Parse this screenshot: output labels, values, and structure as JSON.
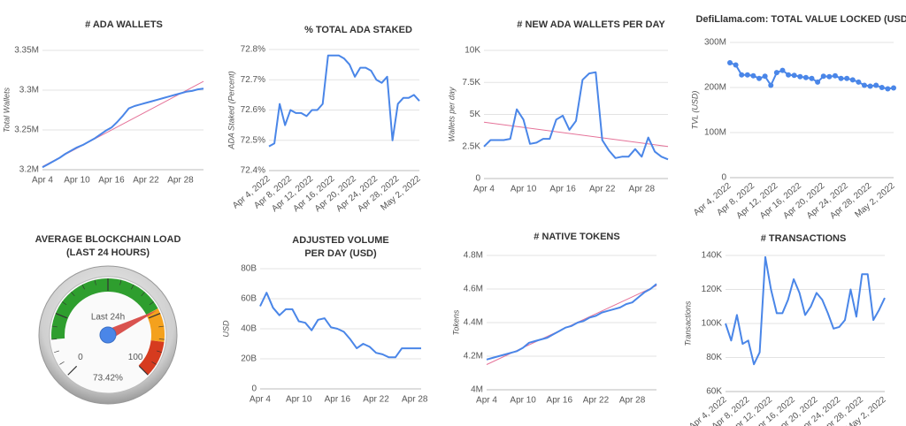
{
  "chart_data": [
    {
      "type": "line",
      "title": "# ADA WALLETS",
      "y_label": "Total Wallets",
      "categories": [
        "Apr 4",
        null,
        null,
        null,
        null,
        null,
        "Apr 10",
        null,
        null,
        null,
        null,
        null,
        "Apr 16",
        null,
        null,
        null,
        null,
        null,
        "Apr 22",
        null,
        null,
        null,
        null,
        null,
        "Apr 28",
        null,
        null,
        null,
        null
      ],
      "series": [
        {
          "color": "#4a86e8",
          "values": [
            3203000,
            3207000,
            3211000,
            3215000,
            3220000,
            3224000,
            3228000,
            3231000,
            3235000,
            3239000,
            3244000,
            3249000,
            3253000,
            3260000,
            3268000,
            3277000,
            3280000,
            3282000,
            3284000,
            3286000,
            3288000,
            3290000,
            3292000,
            3294000,
            3296000,
            3298000,
            3299000,
            3301000,
            3302000
          ]
        }
      ],
      "trend": {
        "color": "#e57399",
        "start": 3204000,
        "end": 3311000
      },
      "ylim": [
        3200000,
        3350000
      ],
      "yticks": [
        {
          "value": 3200000,
          "label": "3.2M"
        },
        {
          "value": 3250000,
          "label": "3.25M"
        },
        {
          "value": 3300000,
          "label": "3.3M"
        },
        {
          "value": 3350000,
          "label": "3.35M"
        }
      ],
      "grid": true
    },
    {
      "type": "line",
      "title": "% TOTAL ADA STAKED",
      "y_label": "ADA Staked (Percent)",
      "rotate_x_labels": true,
      "categories": [
        "Apr 4, 2022",
        null,
        null,
        null,
        "Apr 8, 2022",
        null,
        null,
        null,
        "Apr 12, 2022",
        null,
        null,
        null,
        "Apr 16, 2022",
        null,
        null,
        null,
        "Apr 20, 2022",
        null,
        null,
        null,
        "Apr 24, 2022",
        null,
        null,
        null,
        "Apr 28, 2022",
        null,
        null,
        null,
        "May 2, 2022"
      ],
      "series": [
        {
          "color": "#4a86e8",
          "values": [
            72.48,
            72.49,
            72.62,
            72.55,
            72.6,
            72.59,
            72.59,
            72.58,
            72.6,
            72.6,
            72.62,
            72.78,
            72.78,
            72.78,
            72.77,
            72.75,
            72.71,
            72.74,
            72.74,
            72.73,
            72.7,
            72.69,
            72.71,
            72.5,
            72.62,
            72.64,
            72.64,
            72.65,
            72.63
          ]
        }
      ],
      "ylim": [
        72.4,
        72.8
      ],
      "yticks": [
        {
          "value": 72.4,
          "label": "72.4%"
        },
        {
          "value": 72.5,
          "label": "72.5%"
        },
        {
          "value": 72.6,
          "label": "72.6%"
        },
        {
          "value": 72.7,
          "label": "72.7%"
        },
        {
          "value": 72.8,
          "label": "72.8%"
        }
      ],
      "grid": true
    },
    {
      "type": "line",
      "title": "# NEW ADA WALLETS PER DAY",
      "y_label": "Wallets per day",
      "categories": [
        "Apr 4",
        null,
        null,
        null,
        null,
        null,
        "Apr 10",
        null,
        null,
        null,
        null,
        null,
        "Apr 16",
        null,
        null,
        null,
        null,
        null,
        "Apr 22",
        null,
        null,
        null,
        null,
        null,
        "Apr 28",
        null,
        null,
        null,
        null
      ],
      "series": [
        {
          "color": "#4a86e8",
          "values": [
            2500,
            3000,
            3000,
            3000,
            3100,
            5400,
            4600,
            2700,
            2800,
            3100,
            3100,
            4600,
            4900,
            3800,
            4500,
            7700,
            8200,
            8300,
            3000,
            2200,
            1600,
            1700,
            1700,
            2300,
            1700,
            3200,
            2100,
            1700,
            1500
          ]
        }
      ],
      "trend": {
        "color": "#e57399",
        "start": 4400,
        "end": 2500
      },
      "ylim": [
        0,
        10000
      ],
      "yticks": [
        0,
        {
          "value": 2500,
          "label": "2.5K"
        },
        {
          "value": 5000,
          "label": "5K"
        },
        {
          "value": 7500,
          "label": "7.5K"
        },
        {
          "value": 10000,
          "label": "10K"
        }
      ],
      "grid": true
    },
    {
      "type": "line",
      "title": "DefiLlama.com: TOTAL VALUE LOCKED (USD)",
      "y_label": "TVL (USD)",
      "rotate_x_labels": true,
      "markers": true,
      "categories": [
        "Apr 4, 2022",
        null,
        null,
        null,
        "Apr 8, 2022",
        null,
        null,
        null,
        "Apr 12, 2022",
        null,
        null,
        null,
        "Apr 16, 2022",
        null,
        null,
        null,
        "Apr 20, 2022",
        null,
        null,
        null,
        "Apr 24, 2022",
        null,
        null,
        null,
        "Apr 28, 2022",
        null,
        null,
        null,
        "May 2, 2022"
      ],
      "series": [
        {
          "color": "#4a86e8",
          "values": [
            255000000,
            250000000,
            228000000,
            228000000,
            226000000,
            220000000,
            225000000,
            205000000,
            233000000,
            238000000,
            228000000,
            227000000,
            224000000,
            222000000,
            220000000,
            212000000,
            225000000,
            224000000,
            226000000,
            220000000,
            220000000,
            217000000,
            212000000,
            205000000,
            203000000,
            205000000,
            200000000,
            197000000,
            199000000
          ]
        }
      ],
      "ylim": [
        0,
        300000000
      ],
      "yticks": [
        0,
        {
          "value": 100000000,
          "label": "100M"
        },
        {
          "value": 200000000,
          "label": "200M"
        },
        {
          "value": 300000000,
          "label": "300M"
        }
      ],
      "grid": true
    },
    {
      "type": "gauge",
      "title": [
        "AVERAGE BLOCKCHAIN LOAD",
        "(LAST 24 HOURS)"
      ],
      "label": "Last 24h",
      "value": 73.42,
      "value_label": "73.42%",
      "min": 0,
      "max": 100,
      "bands": [
        {
          "from": 15,
          "to": 73,
          "color": "#2e9e2e"
        },
        {
          "from": 73,
          "to": 86,
          "color": "#f4a11d"
        },
        {
          "from": 86,
          "to": 100,
          "color": "#d63b1f"
        }
      ]
    },
    {
      "type": "line",
      "title": [
        "ADJUSTED VOLUME",
        "PER DAY (USD)"
      ],
      "y_label": "USD",
      "categories": [
        "Apr 4",
        null,
        null,
        null,
        null,
        null,
        "Apr 10",
        null,
        null,
        null,
        null,
        null,
        "Apr 16",
        null,
        null,
        null,
        null,
        null,
        "Apr 22",
        null,
        null,
        null,
        null,
        null,
        "Apr 28",
        null
      ],
      "series": [
        {
          "color": "#4a86e8",
          "values": [
            55000000000,
            64000000000,
            54000000000,
            49000000000,
            53000000000,
            53000000000,
            45000000000,
            44000000000,
            39000000000,
            46000000000,
            47000000000,
            41000000000,
            40000000000,
            38000000000,
            33000000000,
            27000000000,
            30000000000,
            28000000000,
            24000000000,
            23000000000,
            21000000000,
            21000000000,
            27000000000,
            27000000000,
            27000000000,
            27000000000
          ]
        }
      ],
      "ylim": [
        0,
        80000000000
      ],
      "yticks": [
        0,
        {
          "value": 20000000000,
          "label": "20B"
        },
        {
          "value": 40000000000,
          "label": "40B"
        },
        {
          "value": 60000000000,
          "label": "60B"
        },
        {
          "value": 80000000000,
          "label": "80B"
        }
      ],
      "grid": true
    },
    {
      "type": "line",
      "title": "# NATIVE TOKENS",
      "y_label": "Tokens",
      "categories": [
        "Apr 4",
        null,
        null,
        null,
        null,
        null,
        "Apr 10",
        null,
        null,
        null,
        null,
        null,
        "Apr 16",
        null,
        null,
        null,
        null,
        null,
        "Apr 22",
        null,
        null,
        null,
        null,
        null,
        "Apr 28",
        null,
        null,
        null,
        null
      ],
      "series": [
        {
          "color": "#4a86e8",
          "values": [
            4180000,
            4190000,
            4200000,
            4210000,
            4220000,
            4230000,
            4250000,
            4280000,
            4290000,
            4300000,
            4310000,
            4330000,
            4350000,
            4370000,
            4380000,
            4400000,
            4410000,
            4430000,
            4440000,
            4460000,
            4470000,
            4480000,
            4490000,
            4510000,
            4520000,
            4550000,
            4580000,
            4600000,
            4630000
          ]
        }
      ],
      "trend": {
        "color": "#e57399",
        "start": 4150000,
        "end": 4620000
      },
      "ylim": [
        4000000,
        4800000
      ],
      "yticks": [
        {
          "value": 4000000,
          "label": "4M"
        },
        {
          "value": 4200000,
          "label": "4.2M"
        },
        {
          "value": 4400000,
          "label": "4.4M"
        },
        {
          "value": 4600000,
          "label": "4.6M"
        },
        {
          "value": 4800000,
          "label": "4.8M"
        }
      ],
      "grid": true
    },
    {
      "type": "line",
      "title": "# TRANSACTIONS",
      "y_label": "Transactions",
      "rotate_x_labels": true,
      "categories": [
        "Apr 4, 2022",
        null,
        null,
        null,
        "Apr 8, 2022",
        null,
        null,
        null,
        "Apr 12, 2022",
        null,
        null,
        null,
        "Apr 16, 2022",
        null,
        null,
        null,
        "Apr 20, 2022",
        null,
        null,
        null,
        "Apr 24, 2022",
        null,
        null,
        null,
        "Apr 28, 2022",
        null,
        null,
        null,
        "May 2, 2022"
      ],
      "series": [
        {
          "color": "#4a86e8",
          "values": [
            100000,
            90000,
            105000,
            88000,
            90000,
            76000,
            83000,
            139000,
            120000,
            106000,
            106000,
            114000,
            126000,
            118000,
            105000,
            110000,
            118000,
            114000,
            106000,
            97000,
            98000,
            102000,
            120000,
            104000,
            129000,
            129000,
            102000,
            108000,
            115000
          ]
        }
      ],
      "ylim": [
        60000,
        140000
      ],
      "yticks": [
        {
          "value": 60000,
          "label": "60K"
        },
        {
          "value": 80000,
          "label": "80K"
        },
        {
          "value": 100000,
          "label": "100K"
        },
        {
          "value": 120000,
          "label": "120K"
        },
        {
          "value": 140000,
          "label": "140K"
        }
      ],
      "grid": true
    }
  ]
}
